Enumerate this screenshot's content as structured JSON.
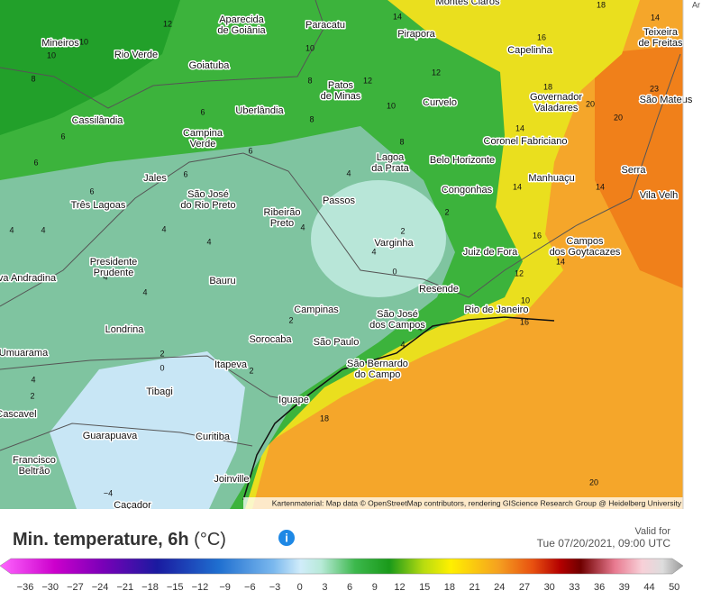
{
  "map": {
    "corner_label": "Ar",
    "attribution": "Kartenmaterial: Map data © OpenStreetMap contributors, rendering GIScience Research Group @ Heidelberg University",
    "cities": [
      {
        "lines": [
          "Aparecida",
          "de Goiânia"
        ]
      },
      {
        "lines": [
          "Paracatu"
        ]
      },
      {
        "lines": [
          "Montes Claros"
        ]
      },
      {
        "lines": [
          "Mineiros"
        ]
      },
      {
        "lines": [
          "Rio Verde"
        ]
      },
      {
        "lines": [
          "Pirapora"
        ]
      },
      {
        "lines": [
          "Capelinha"
        ]
      },
      {
        "lines": [
          "Teixeira",
          "de Freitas"
        ]
      },
      {
        "lines": [
          "Goiatuba"
        ]
      },
      {
        "lines": [
          "Patos",
          "de Minas"
        ]
      },
      {
        "lines": [
          "Governador",
          "Valadares"
        ]
      },
      {
        "lines": [
          "São Mateus"
        ]
      },
      {
        "lines": [
          "Uberlândia"
        ]
      },
      {
        "lines": [
          "Curvelo"
        ]
      },
      {
        "lines": [
          "Cassilândia"
        ]
      },
      {
        "lines": [
          "Campina",
          "Verde"
        ]
      },
      {
        "lines": [
          "Coronel Fabriciano"
        ]
      },
      {
        "lines": [
          "Lagoa",
          "da Prata"
        ]
      },
      {
        "lines": [
          "Belo Horizonte"
        ]
      },
      {
        "lines": [
          "Serra"
        ]
      },
      {
        "lines": [
          "Jales"
        ]
      },
      {
        "lines": [
          "Manhuaçu"
        ]
      },
      {
        "lines": [
          "São José",
          "do Rio Preto"
        ]
      },
      {
        "lines": [
          "Congonhas"
        ]
      },
      {
        "lines": [
          "Vila Velh"
        ]
      },
      {
        "lines": [
          "Passos"
        ]
      },
      {
        "lines": [
          "Três Lagoas"
        ]
      },
      {
        "lines": [
          "Ribeirão",
          "Preto"
        ]
      },
      {
        "lines": [
          "Varginha"
        ]
      },
      {
        "lines": [
          "Campos",
          "dos Goytacazes"
        ]
      },
      {
        "lines": [
          "Juiz de Fora"
        ]
      },
      {
        "lines": [
          "Presidente",
          "Prudente"
        ]
      },
      {
        "lines": [
          "va Andradina"
        ]
      },
      {
        "lines": [
          "Bauru"
        ]
      },
      {
        "lines": [
          "Resende"
        ]
      },
      {
        "lines": [
          "Campinas"
        ]
      },
      {
        "lines": [
          "Rio de Janeiro"
        ]
      },
      {
        "lines": [
          "São José",
          "dos Campos"
        ]
      },
      {
        "lines": [
          "Londrina"
        ]
      },
      {
        "lines": [
          "Sorocaba"
        ]
      },
      {
        "lines": [
          "São Paulo"
        ]
      },
      {
        "lines": [
          "Umuarama"
        ]
      },
      {
        "lines": [
          "Itapeva"
        ]
      },
      {
        "lines": [
          "São Bernardo",
          "do Campo"
        ]
      },
      {
        "lines": [
          "Tibagi"
        ]
      },
      {
        "lines": [
          "Iguape"
        ]
      },
      {
        "lines": [
          "Cascavel"
        ]
      },
      {
        "lines": [
          "Guarapuava"
        ]
      },
      {
        "lines": [
          "Curitiba"
        ]
      },
      {
        "lines": [
          "Francisco",
          "Beltrão"
        ]
      },
      {
        "lines": [
          "Joinville"
        ]
      },
      {
        "lines": [
          "Caçador"
        ]
      }
    ],
    "values": [
      "12",
      "10",
      "10",
      "8",
      "10",
      "8",
      "12",
      "14",
      "12",
      "10",
      "16",
      "18",
      "14",
      "18",
      "20",
      "20",
      "23",
      "6",
      "8",
      "6",
      "6",
      "6",
      "8",
      "14",
      "14",
      "14",
      "4",
      "6",
      "6",
      "4",
      "4",
      "4",
      "2",
      "0",
      "4",
      "16",
      "12",
      "14",
      "2",
      "4",
      "4",
      "4",
      "4",
      "2",
      "4",
      "10",
      "16",
      "2",
      "2",
      "0",
      "4",
      "2",
      "18",
      "20",
      "−4",
      "4"
    ]
  },
  "footer": {
    "title": "Min. temperature, 6h",
    "unit": "(°C)",
    "valid_label": "Valid for",
    "valid_time": "Tue 07/20/2021, 09:00 UTC"
  },
  "legend": {
    "labels": [
      "−36",
      "−30",
      "−27",
      "−24",
      "−21",
      "−18",
      "−15",
      "−12",
      "−9",
      "−6",
      "−3",
      "0",
      "3",
      "6",
      "9",
      "12",
      "15",
      "18",
      "21",
      "24",
      "27",
      "30",
      "33",
      "36",
      "39",
      "44",
      "50"
    ]
  }
}
